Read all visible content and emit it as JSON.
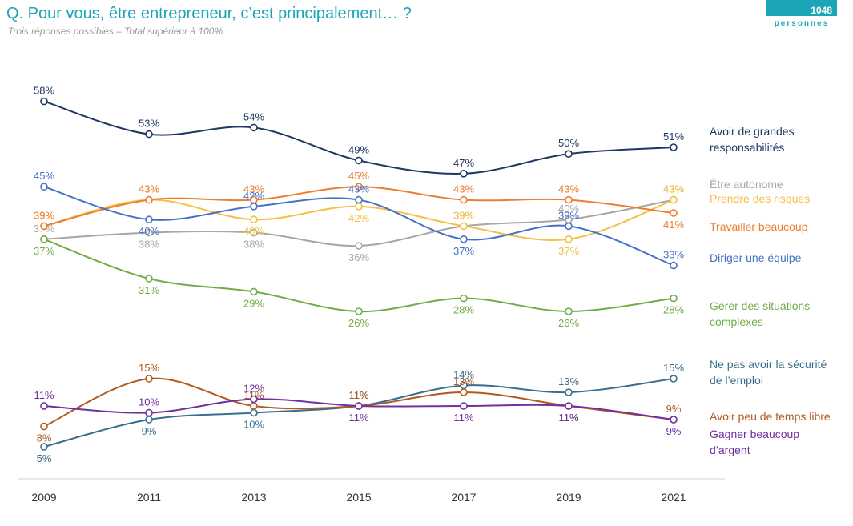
{
  "header": {
    "title": "Q. Pour vous, être entrepreneur, c’est principalement… ?",
    "subtitle": "Trois réponses possibles – Total supérieur à 100%"
  },
  "badge": {
    "count": "1048",
    "label": "personnes",
    "color": "#1aa6b7"
  },
  "chart_data": {
    "type": "line",
    "x": [
      "2009",
      "2011",
      "2013",
      "2015",
      "2017",
      "2019",
      "2021"
    ],
    "value_suffix": "%",
    "grid": false,
    "legend_position": "right",
    "series": [
      {
        "key": "responsabilites",
        "name": "Avoir de grandes responsabilités",
        "color": "#1f3864",
        "values": [
          58,
          53,
          54,
          49,
          47,
          50,
          51
        ]
      },
      {
        "key": "autonome",
        "name": "Être autonome",
        "color": "#a6a6a6",
        "values": [
          37,
          38,
          38,
          36,
          39,
          40,
          43
        ]
      },
      {
        "key": "risques",
        "name": "Prendre des risques",
        "color": "#f5c043",
        "values": [
          39,
          43,
          40,
          42,
          39,
          37,
          43
        ]
      },
      {
        "key": "travailler",
        "name": "Travailler beaucoup",
        "color": "#ed7d31",
        "values": [
          39,
          43,
          43,
          45,
          43,
          43,
          41
        ]
      },
      {
        "key": "diriger",
        "name": "Diriger une équipe",
        "color": "#4472c4",
        "values": [
          45,
          40,
          42,
          43,
          37,
          39,
          33
        ]
      },
      {
        "key": "gerer",
        "name": "Gérer des situations complexes",
        "color": "#70ad47",
        "values": [
          37,
          31,
          29,
          26,
          28,
          26,
          28
        ]
      },
      {
        "key": "securite",
        "name": "Ne pas avoir la sécurité de l’emploi",
        "color": "#3a6e8f",
        "values": [
          5,
          9,
          10,
          11,
          14,
          13,
          15
        ]
      },
      {
        "key": "temps",
        "name": "Avoir peu de temps libre",
        "color": "#b05a1e",
        "values": [
          8,
          15,
          11,
          11,
          13,
          11,
          9
        ]
      },
      {
        "key": "argent",
        "name": "Gagner beaucoup d’argent",
        "color": "#7030a0",
        "values": [
          11,
          10,
          12,
          11,
          11,
          11,
          9
        ]
      }
    ]
  },
  "legend": {
    "responsabilites": [
      "Avoir de grandes",
      "responsabilités"
    ],
    "autonome": [
      "Être autonome"
    ],
    "risques": [
      "Prendre des risques"
    ],
    "travailler": [
      "Travailler beaucoup"
    ],
    "diriger": [
      "Diriger une équipe"
    ],
    "gerer": [
      "Gérer des situations",
      "complexes"
    ],
    "securite": [
      "Ne pas avoir la sécurité",
      "de l’emploi"
    ],
    "temps": [
      "Avoir peu de temps libre"
    ],
    "argent": [
      "Gagner beaucoup",
      "d’argent"
    ]
  }
}
